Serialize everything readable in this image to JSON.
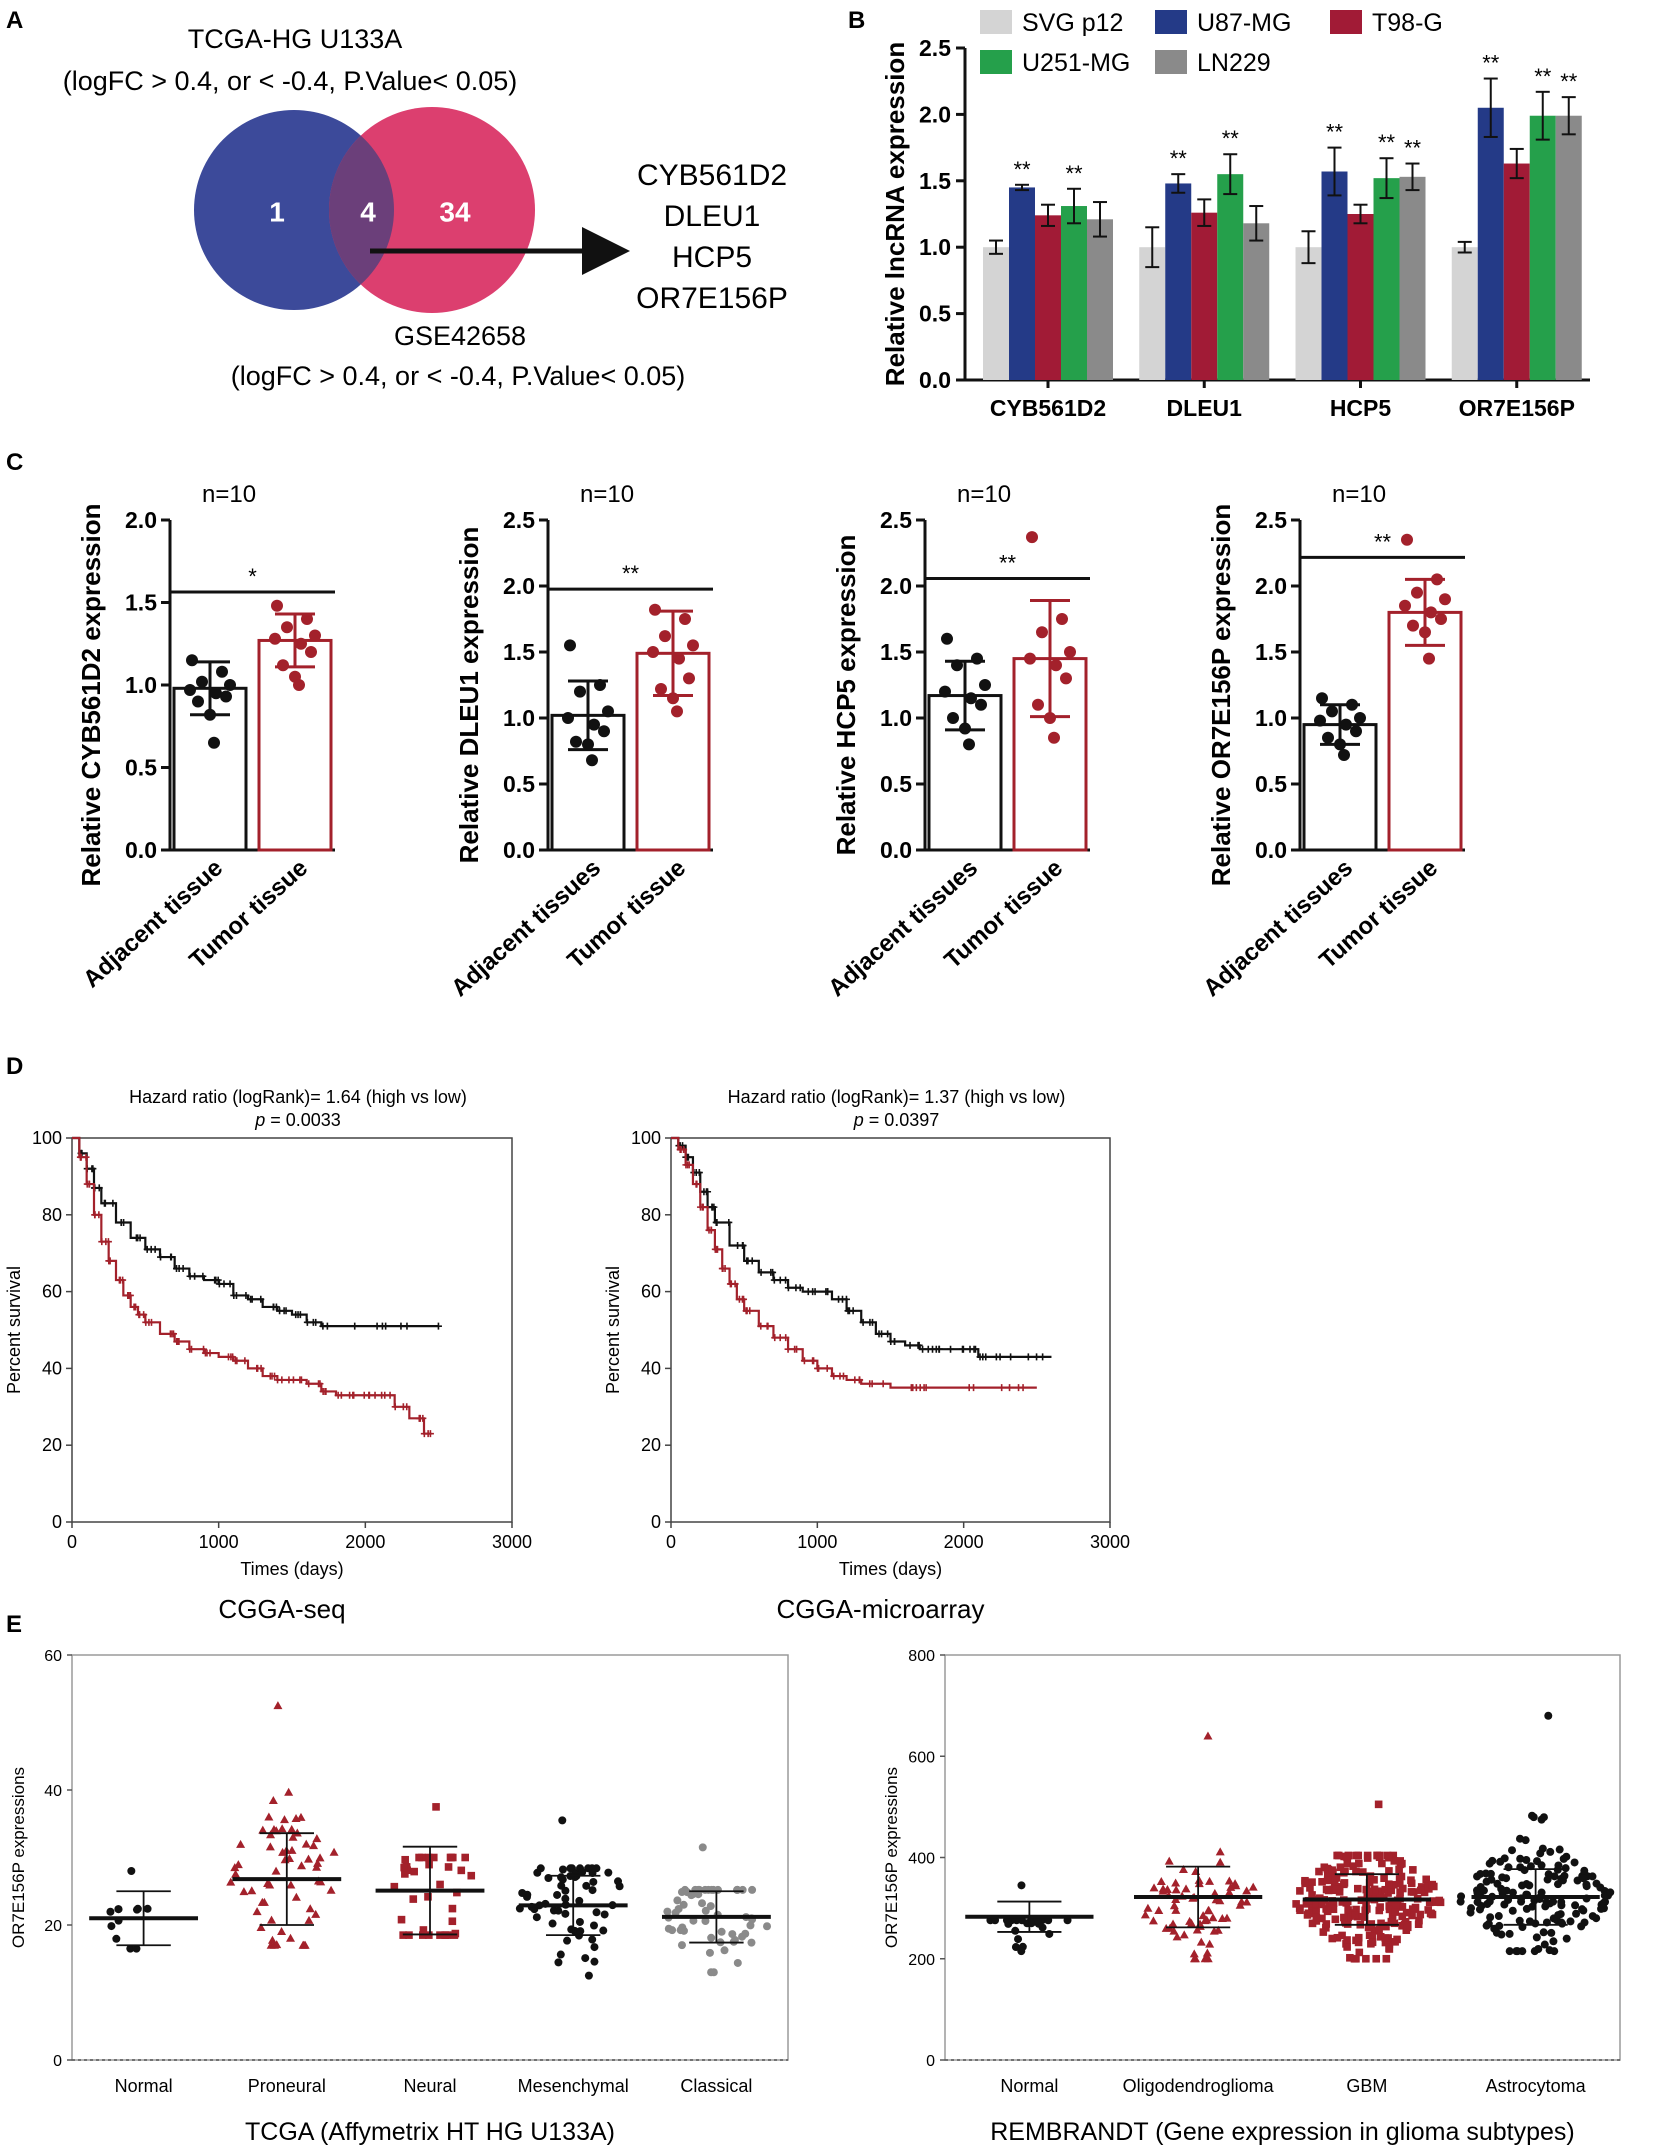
{
  "colors": {
    "venn_left": "#3c4a9a",
    "venn_right": "#dc3f6f",
    "venn_overlap": "#6b3f7a",
    "svg_p12": "#d4d4d4",
    "u87": "#243a87",
    "t98": "#a11b36",
    "u251": "#25a04b",
    "ln229": "#8a8a8a",
    "tumor": "#a3212b",
    "adjacent": "#111111",
    "grey_pts": "#8a8a8a"
  },
  "panels": {
    "A": "A",
    "B": "B",
    "C": "C",
    "D": "D",
    "E": "E"
  },
  "panel_a": {
    "top_title": "TCGA-HG U133A",
    "top_criteria": "(logFC > 0.4, or < -0.4, P.Value< 0.05)",
    "left_count": "1",
    "overlap_count": "4",
    "right_count": "34",
    "bottom_title": "GSE42658",
    "bottom_criteria": "(logFC > 0.4, or < -0.4, P.Value< 0.05)",
    "genes": [
      "CYB561D2",
      "DLEU1",
      "HCP5",
      "OR7E156P"
    ]
  },
  "chart_data": [
    {
      "id": "B",
      "type": "bar",
      "title": "",
      "ylabel": "Relative lncRNA expression",
      "xlabel": "",
      "ylim": [
        0,
        2.5
      ],
      "yticks": [
        0.0,
        0.5,
        1.0,
        1.5,
        2.0,
        2.5
      ],
      "ytick_labels": [
        "0.0",
        "0.5",
        "1.0",
        "1.5",
        "2.0",
        "2.5"
      ],
      "categories": [
        "CYB561D2",
        "DLEU1",
        "HCP5",
        "OR7E156P"
      ],
      "legend": [
        "SVG p12",
        "U87-MG",
        "T98-G",
        "U251-MG",
        "LN229"
      ],
      "series": [
        {
          "name": "SVG p12",
          "values": [
            1.0,
            1.0,
            1.0,
            1.0
          ],
          "errors": [
            0.05,
            0.15,
            0.12,
            0.04
          ]
        },
        {
          "name": "U87-MG",
          "values": [
            1.45,
            1.48,
            1.57,
            2.05
          ],
          "errors": [
            0.02,
            0.07,
            0.18,
            0.22
          ]
        },
        {
          "name": "T98-G",
          "values": [
            1.24,
            1.26,
            1.25,
            1.63
          ],
          "errors": [
            0.08,
            0.1,
            0.07,
            0.11
          ]
        },
        {
          "name": "U251-MG",
          "values": [
            1.31,
            1.55,
            1.52,
            1.99
          ],
          "errors": [
            0.13,
            0.15,
            0.15,
            0.18
          ]
        },
        {
          "name": "LN229",
          "values": [
            1.21,
            1.18,
            1.53,
            1.99
          ],
          "errors": [
            0.13,
            0.13,
            0.1,
            0.14
          ]
        }
      ],
      "annotations": [
        {
          "category": "CYB561D2",
          "series": "U87-MG",
          "text": "**"
        },
        {
          "category": "CYB561D2",
          "series": "U251-MG",
          "text": "**"
        },
        {
          "category": "DLEU1",
          "series": "U87-MG",
          "text": "**"
        },
        {
          "category": "DLEU1",
          "series": "U251-MG",
          "text": "**"
        },
        {
          "category": "HCP5",
          "series": "U87-MG",
          "text": "**"
        },
        {
          "category": "HCP5",
          "series": "U251-MG",
          "text": "**"
        },
        {
          "category": "HCP5",
          "series": "LN229",
          "text": "**"
        },
        {
          "category": "OR7E156P",
          "series": "U87-MG",
          "text": "**"
        },
        {
          "category": "OR7E156P",
          "series": "U251-MG",
          "text": "**"
        },
        {
          "category": "OR7E156P",
          "series": "LN229",
          "text": "**"
        }
      ]
    },
    {
      "id": "C1",
      "type": "bar",
      "ylabel": "Relative CYB561D2 expression",
      "n_label": "n=10",
      "sig": "*",
      "ylim": [
        0,
        2.0
      ],
      "yticks": [
        0.0,
        0.5,
        1.0,
        1.5,
        2.0
      ],
      "ytick_labels": [
        "0.0",
        "0.5",
        "1.0",
        "1.5",
        "2.0"
      ],
      "categories": [
        "Adjacent tissue",
        "Tumor tissue"
      ],
      "values": [
        0.98,
        1.27
      ],
      "sd": [
        0.16,
        0.16
      ],
      "points": [
        [
          1.15,
          1.08,
          1.02,
          1.0,
          0.97,
          0.95,
          0.93,
          0.9,
          0.82,
          0.65
        ],
        [
          1.48,
          1.4,
          1.35,
          1.3,
          1.28,
          1.25,
          1.2,
          1.12,
          1.05,
          1.0
        ]
      ]
    },
    {
      "id": "C2",
      "type": "bar",
      "ylabel": "Relative DLEU1 expression",
      "n_label": "n=10",
      "sig": "**",
      "ylim": [
        0,
        2.5
      ],
      "yticks": [
        0.0,
        0.5,
        1.0,
        1.5,
        2.0,
        2.5
      ],
      "ytick_labels": [
        "0.0",
        "0.5",
        "1.0",
        "1.5",
        "2.0",
        "2.5"
      ],
      "categories": [
        "Adjacent tissues",
        "Tumor tissue"
      ],
      "values": [
        1.02,
        1.49
      ],
      "sd": [
        0.26,
        0.32
      ],
      "points": [
        [
          1.55,
          1.25,
          1.2,
          1.05,
          1.0,
          0.95,
          0.9,
          0.82,
          0.8,
          0.68
        ],
        [
          1.82,
          1.75,
          1.62,
          1.55,
          1.5,
          1.45,
          1.3,
          1.22,
          1.15,
          1.05
        ]
      ]
    },
    {
      "id": "C3",
      "type": "bar",
      "ylabel": "Relative HCP5 expression",
      "n_label": "n=10",
      "sig": "**",
      "ylim": [
        0,
        2.5
      ],
      "yticks": [
        0.0,
        0.5,
        1.0,
        1.5,
        2.0,
        2.5
      ],
      "ytick_labels": [
        "0.0",
        "0.5",
        "1.0",
        "1.5",
        "2.0",
        "2.5"
      ],
      "categories": [
        "Adjacent tissues",
        "Tumor tissue"
      ],
      "values": [
        1.17,
        1.45
      ],
      "sd": [
        0.26,
        0.44
      ],
      "points": [
        [
          1.6,
          1.45,
          1.4,
          1.25,
          1.2,
          1.15,
          1.1,
          1.0,
          0.92,
          0.8
        ],
        [
          2.37,
          1.75,
          1.65,
          1.5,
          1.45,
          1.4,
          1.3,
          1.1,
          1.0,
          0.85
        ]
      ]
    },
    {
      "id": "C4",
      "type": "bar",
      "ylabel": "Relative OR7E156P expression",
      "n_label": "n=10",
      "sig": "**",
      "ylim": [
        0,
        2.5
      ],
      "yticks": [
        0.0,
        0.5,
        1.0,
        1.5,
        2.0,
        2.5
      ],
      "ytick_labels": [
        "0.0",
        "0.5",
        "1.0",
        "1.5",
        "2.0",
        "2.5"
      ],
      "categories": [
        "Adjacent tissues",
        "Tumor tissue"
      ],
      "values": [
        0.95,
        1.8
      ],
      "sd": [
        0.15,
        0.25
      ],
      "points": [
        [
          1.15,
          1.1,
          1.05,
          1.0,
          0.98,
          0.95,
          0.9,
          0.85,
          0.8,
          0.72
        ],
        [
          2.35,
          2.05,
          1.95,
          1.9,
          1.85,
          1.8,
          1.75,
          1.7,
          1.65,
          1.45
        ]
      ]
    },
    {
      "id": "D1",
      "type": "line",
      "title": "Hazard ratio (logRank)= 1.64 (high vs low)",
      "p_label": "p",
      "p_text": " = 0.0033",
      "caption": "CGGA-seq",
      "xlabel": "Times (days)",
      "ylabel": "Percent survival",
      "xlim": [
        0,
        3000
      ],
      "ylim": [
        0,
        100
      ],
      "xticks": [
        0,
        1000,
        2000,
        3000
      ],
      "xtick_labels": [
        "0",
        "1000",
        "2000",
        "3000"
      ],
      "yticks": [
        0,
        20,
        40,
        60,
        80,
        100
      ],
      "ytick_labels": [
        "0",
        "20",
        "40",
        "60",
        "80",
        "100"
      ],
      "series": [
        {
          "name": "low",
          "color": "#111111",
          "x": [
            0,
            50,
            100,
            150,
            200,
            300,
            400,
            500,
            600,
            700,
            800,
            900,
            1000,
            1100,
            1200,
            1300,
            1400,
            1500,
            1600,
            1700,
            2000,
            2200,
            2500
          ],
          "y": [
            100,
            96,
            92,
            87,
            83,
            78,
            74,
            71,
            69,
            66,
            64,
            63,
            62,
            59,
            58,
            56,
            55,
            54,
            52,
            51,
            51,
            51,
            51
          ]
        },
        {
          "name": "high",
          "color": "#a3212b",
          "x": [
            0,
            50,
            100,
            150,
            200,
            250,
            300,
            350,
            400,
            450,
            500,
            600,
            700,
            800,
            900,
            1000,
            1100,
            1200,
            1300,
            1400,
            1500,
            1600,
            1700,
            1800,
            1900,
            2000,
            2100,
            2200,
            2300,
            2400,
            2450
          ],
          "y": [
            100,
            95,
            88,
            80,
            73,
            68,
            63,
            59,
            56,
            54,
            52,
            49,
            47,
            45,
            44,
            43,
            42,
            40,
            38,
            37,
            37,
            36,
            34,
            33,
            33,
            33,
            33,
            30,
            27,
            23,
            23
          ]
        }
      ]
    },
    {
      "id": "D2",
      "type": "line",
      "title": "Hazard ratio (logRank)= 1.37 (high vs low)",
      "p_label": "p",
      "p_text": " = 0.0397",
      "caption": "CGGA-microarray",
      "xlabel": "Times (days)",
      "ylabel": "Percent survival",
      "xlim": [
        0,
        3000
      ],
      "ylim": [
        0,
        100
      ],
      "xticks": [
        0,
        1000,
        2000,
        3000
      ],
      "xtick_labels": [
        "0",
        "1000",
        "2000",
        "3000"
      ],
      "yticks": [
        0,
        20,
        40,
        60,
        80,
        100
      ],
      "ytick_labels": [
        "0",
        "20",
        "40",
        "60",
        "80",
        "100"
      ],
      "series": [
        {
          "name": "low",
          "color": "#111111",
          "x": [
            0,
            50,
            100,
            150,
            200,
            250,
            300,
            400,
            500,
            600,
            700,
            800,
            900,
            1000,
            1100,
            1200,
            1300,
            1400,
            1500,
            1600,
            1700,
            1800,
            1900,
            2000,
            2100,
            2200,
            2400,
            2600
          ],
          "y": [
            100,
            98,
            95,
            91,
            86,
            82,
            78,
            72,
            68,
            65,
            63,
            61,
            60,
            60,
            58,
            55,
            52,
            49,
            47,
            46,
            45,
            45,
            45,
            45,
            43,
            43,
            43,
            43
          ]
        },
        {
          "name": "high",
          "color": "#a3212b",
          "x": [
            0,
            50,
            100,
            150,
            200,
            250,
            300,
            350,
            400,
            450,
            500,
            600,
            700,
            800,
            900,
            1000,
            1100,
            1200,
            1300,
            1500,
            1700,
            2000,
            2300,
            2500
          ],
          "y": [
            100,
            97,
            93,
            88,
            82,
            76,
            71,
            66,
            62,
            58,
            55,
            51,
            48,
            45,
            42,
            40,
            38,
            37,
            36,
            35,
            35,
            35,
            35,
            35
          ]
        }
      ]
    },
    {
      "id": "E1",
      "type": "scatter",
      "xlabel": "TCGA (Affymetrix HT HG U133A)",
      "ylabel": "OR7E156P expressions",
      "ylim": [
        0,
        60
      ],
      "yticks": [
        0,
        20,
        40,
        60
      ],
      "ytick_labels": [
        "0",
        "20",
        "40",
        "60"
      ],
      "categories": [
        "Normal",
        "Proneural",
        "Neural",
        "Mesenchymal",
        "Classical"
      ],
      "means": [
        21,
        26.8,
        25.1,
        22.9,
        21.2
      ],
      "sd": [
        4.0,
        6.8,
        6.5,
        4.4,
        3.8
      ],
      "n": [
        10,
        60,
        35,
        60,
        55
      ],
      "range": [
        [
          16.5,
          28
        ],
        [
          17,
          52.5
        ],
        [
          18.5,
          37.5
        ],
        [
          12.5,
          35.5
        ],
        [
          13,
          31.5
        ]
      ],
      "markers": [
        "circle",
        "triangle",
        "square",
        "circle",
        "circle"
      ],
      "colors": [
        "#111111",
        "#a3212b",
        "#a3212b",
        "#111111",
        "#8a8a8a"
      ]
    },
    {
      "id": "E2",
      "type": "scatter",
      "xlabel": "REMBRANDT (Gene expression in glioma subtypes)",
      "ylabel": "OR7E156P expressions",
      "ylim": [
        0,
        800
      ],
      "yticks": [
        0,
        200,
        400,
        600,
        800
      ],
      "ytick_labels": [
        "0",
        "200",
        "400",
        "600",
        "800"
      ],
      "categories": [
        "Normal",
        "Oligodendroglioma",
        "GBM",
        "Astrocytoma"
      ],
      "means": [
        283,
        322,
        317,
        322
      ],
      "sd": [
        30,
        60,
        50,
        55
      ],
      "n": [
        22,
        70,
        230,
        150
      ],
      "range": [
        [
          215,
          345
        ],
        [
          200,
          640
        ],
        [
          200,
          505
        ],
        [
          215,
          680
        ]
      ],
      "markers": [
        "circle",
        "triangle",
        "square",
        "circle"
      ],
      "colors": [
        "#111111",
        "#a3212b",
        "#a3212b",
        "#111111"
      ]
    }
  ]
}
